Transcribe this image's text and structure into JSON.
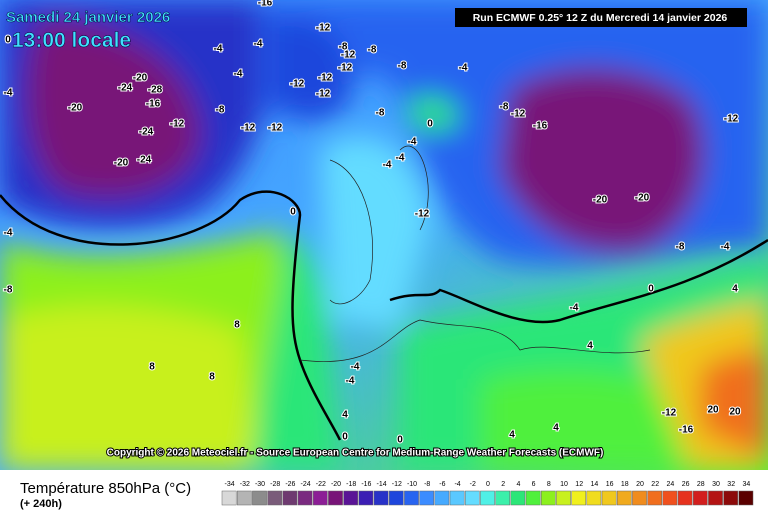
{
  "header": {
    "date": "Samedi 24 janvier 2026",
    "time": "13:00 locale",
    "run": "Run ECMWF 0.25° 12 Z du Mercredi 14 janvier 2026"
  },
  "copyright": "Copyright © 2026 Meteociel.fr - Source European Centre for Medium-Range Weather Forecasts (ECMWF)",
  "footer": {
    "title": "Température 850hPa (°C)",
    "lead": "(+ 240h)"
  },
  "legend": [
    {
      "value": -34,
      "color": "#d8d8d8"
    },
    {
      "value": -32,
      "color": "#b4b4b4"
    },
    {
      "value": -30,
      "color": "#8c8c8c"
    },
    {
      "value": -28,
      "color": "#7a5c7a"
    },
    {
      "value": -26,
      "color": "#6e3a70"
    },
    {
      "value": -24,
      "color": "#7a2a80"
    },
    {
      "value": -22,
      "color": "#8c1e96"
    },
    {
      "value": -20,
      "color": "#781478"
    },
    {
      "value": -18,
      "color": "#5a1496"
    },
    {
      "value": -16,
      "color": "#3c1eb4"
    },
    {
      "value": -14,
      "color": "#2832c8"
    },
    {
      "value": -12,
      "color": "#1e46dc"
    },
    {
      "value": -10,
      "color": "#2864f0"
    },
    {
      "value": -8,
      "color": "#3c8cff"
    },
    {
      "value": -6,
      "color": "#46aaff"
    },
    {
      "value": -4,
      "color": "#5ac8ff"
    },
    {
      "value": -2,
      "color": "#64dcff"
    },
    {
      "value": 0,
      "color": "#50f0e6"
    },
    {
      "value": 2,
      "color": "#3cf0aa"
    },
    {
      "value": 4,
      "color": "#2ce678"
    },
    {
      "value": 6,
      "color": "#50f03c"
    },
    {
      "value": 8,
      "color": "#8cf01e"
    },
    {
      "value": 10,
      "color": "#c8f01e"
    },
    {
      "value": 12,
      "color": "#f0f01e"
    },
    {
      "value": 14,
      "color": "#f0dc1e"
    },
    {
      "value": 16,
      "color": "#f0c81e"
    },
    {
      "value": 18,
      "color": "#f0aa1e"
    },
    {
      "value": 20,
      "color": "#f08c1e"
    },
    {
      "value": 22,
      "color": "#f06e1e"
    },
    {
      "value": 24,
      "color": "#f0501e"
    },
    {
      "value": 26,
      "color": "#e6321e"
    },
    {
      "value": 28,
      "color": "#d21e1e"
    },
    {
      "value": 30,
      "color": "#b41414"
    },
    {
      "value": 32,
      "color": "#8c0a0a"
    },
    {
      "value": 34,
      "color": "#5a0000"
    }
  ],
  "contour_labels": [
    -16,
    -12,
    -4,
    -8,
    -12,
    -8,
    -4,
    -4,
    -12,
    -12,
    -12,
    -12,
    -8,
    -4,
    -8,
    -12,
    -16,
    -12,
    -8,
    -12,
    -12,
    -8,
    0,
    -4,
    -4,
    -4,
    -12,
    -20,
    -20,
    -8,
    -4,
    -4,
    0,
    4,
    -4,
    -4,
    4,
    8,
    8,
    8,
    4,
    0,
    0,
    4,
    4,
    -12,
    -16,
    20,
    20,
    -24,
    -20,
    -24,
    -20,
    -24,
    -12,
    -8,
    0,
    0,
    -4,
    -4,
    -28,
    -16,
    -20
  ]
}
